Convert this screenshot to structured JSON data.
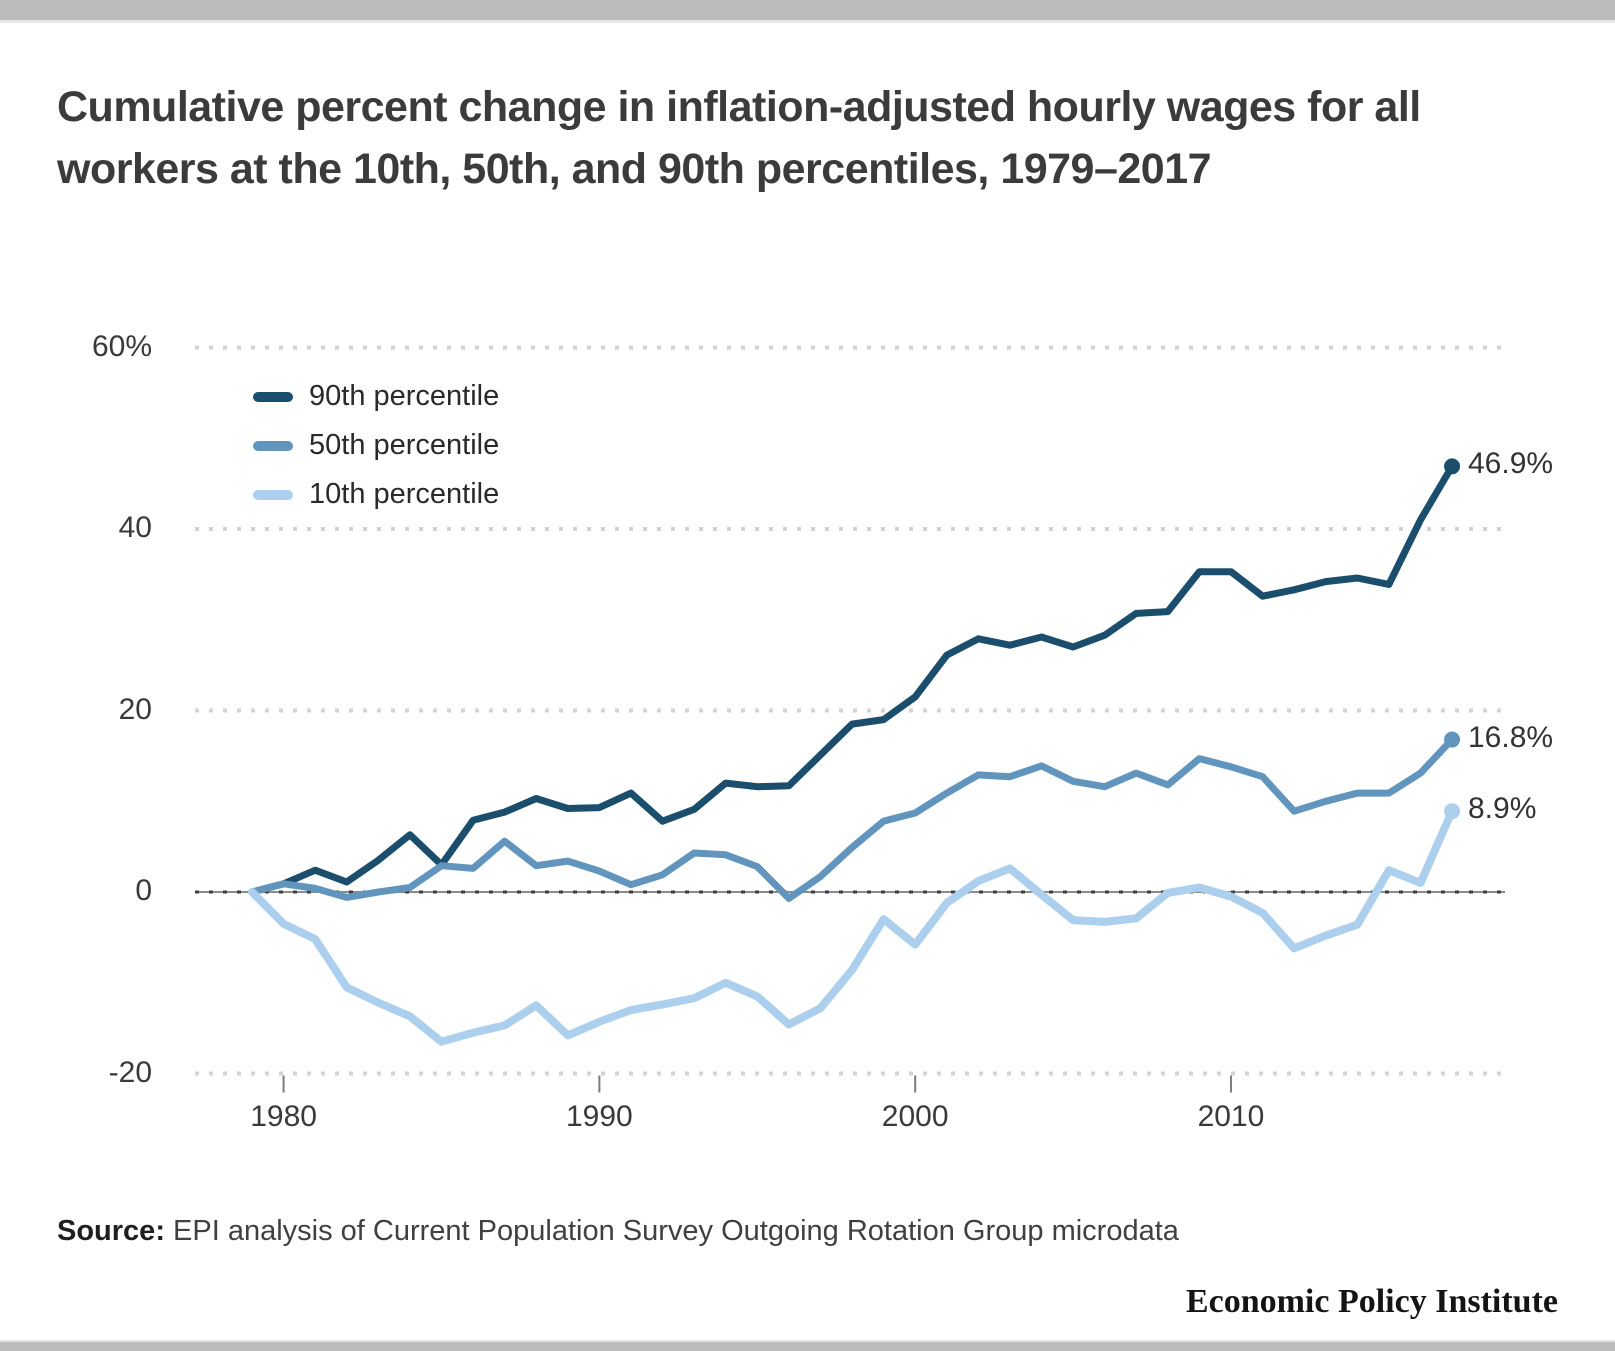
{
  "page": {
    "title": "Cumulative percent change in inflation-adjusted hourly wages for all workers at the 10th, 50th, and 90th percentiles, 1979–2017",
    "source_label": "Source:",
    "source_text": " EPI analysis of Current Population Survey Outgoing Rotation Group microdata",
    "branding": "Economic Policy Institute"
  },
  "chart_data": {
    "type": "line",
    "title": "Cumulative percent change in inflation-adjusted hourly wages for all workers at the 10th, 50th, and 90th percentiles, 1979–2017",
    "xlabel": "",
    "ylabel": "",
    "x": [
      1979,
      1980,
      1981,
      1982,
      1983,
      1984,
      1985,
      1986,
      1987,
      1988,
      1989,
      1990,
      1991,
      1992,
      1993,
      1994,
      1995,
      1996,
      1997,
      1998,
      1999,
      2000,
      2001,
      2002,
      2003,
      2004,
      2005,
      2006,
      2007,
      2008,
      2009,
      2010,
      2011,
      2012,
      2013,
      2014,
      2015,
      2016,
      2017
    ],
    "series": [
      {
        "name": "90th percentile",
        "color": "#1b4e6c",
        "end_label": "46.9%",
        "values": [
          0,
          0.9,
          2.4,
          1.1,
          3.5,
          6.3,
          3.0,
          7.9,
          8.8,
          10.3,
          9.2,
          9.3,
          10.9,
          7.8,
          9.1,
          12.0,
          11.6,
          11.7,
          15.1,
          18.5,
          19.0,
          21.5,
          26.1,
          27.9,
          27.2,
          28.1,
          27.0,
          28.3,
          30.7,
          30.9,
          35.3,
          35.3,
          32.6,
          33.3,
          34.2,
          34.6,
          33.9,
          41.0,
          46.9
        ]
      },
      {
        "name": "50th percentile",
        "color": "#6295bd",
        "end_label": "16.8%",
        "values": [
          0,
          0.9,
          0.4,
          -0.6,
          0.0,
          0.5,
          2.9,
          2.6,
          5.6,
          2.9,
          3.4,
          2.3,
          0.8,
          1.9,
          4.3,
          4.1,
          2.8,
          -0.7,
          1.7,
          4.9,
          7.8,
          8.7,
          10.9,
          12.9,
          12.7,
          13.9,
          12.2,
          11.6,
          13.1,
          11.8,
          14.7,
          13.8,
          12.7,
          8.9,
          10.0,
          10.9,
          10.9,
          13.1,
          16.8
        ]
      },
      {
        "name": "10th percentile",
        "color": "#accfed",
        "end_label": "8.9%",
        "values": [
          0,
          -3.5,
          -5.2,
          -10.5,
          -12.2,
          -13.7,
          -16.5,
          -15.5,
          -14.7,
          -12.5,
          -15.8,
          -14.3,
          -13.0,
          -12.4,
          -11.7,
          -10.0,
          -11.5,
          -14.6,
          -12.8,
          -8.6,
          -3.0,
          -5.8,
          -1.2,
          1.2,
          2.6,
          -0.3,
          -3.1,
          -3.3,
          -2.9,
          -0.1,
          0.5,
          -0.5,
          -2.3,
          -6.2,
          -4.8,
          -3.6,
          2.4,
          1.0,
          8.9
        ]
      }
    ],
    "y_ticks": [
      "60%",
      "40",
      "20",
      "0",
      "-20"
    ],
    "y_tick_values": [
      60,
      40,
      20,
      0,
      -20
    ],
    "x_ticks": [
      1980,
      1990,
      2000,
      2010
    ],
    "xlim": [
      1978.2,
      2018.7
    ],
    "ylim": [
      -22,
      62
    ],
    "grid": "dotted horizontal gridlines, solid gray zero line",
    "legend_position": "top-left inside plot"
  }
}
